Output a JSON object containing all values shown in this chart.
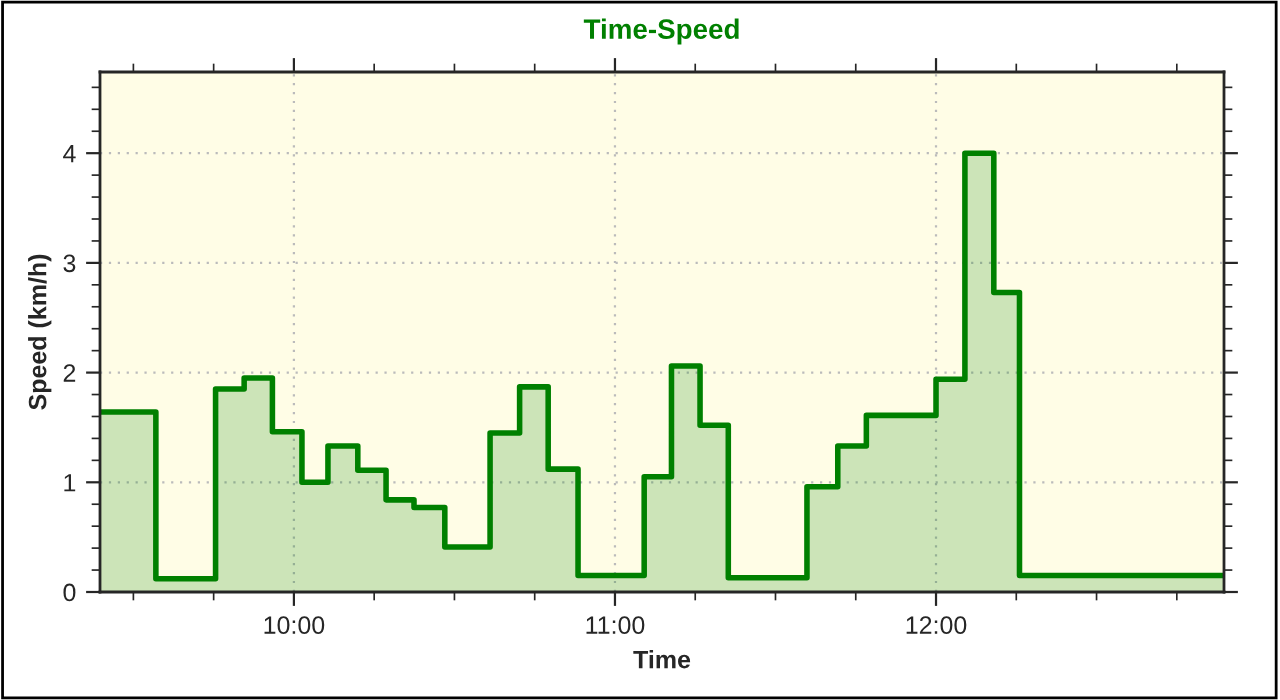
{
  "chart_data": {
    "type": "area",
    "title": "Time-Speed",
    "xlabel": "Time",
    "ylabel": "Speed (km/h)",
    "x": [
      9.396,
      9.57,
      9.57,
      9.756,
      9.756,
      9.845,
      9.845,
      9.933,
      9.933,
      10.025,
      10.025,
      10.106,
      10.106,
      10.199,
      10.199,
      10.287,
      10.287,
      10.374,
      10.374,
      10.47,
      10.47,
      10.611,
      10.611,
      10.703,
      10.703,
      10.792,
      10.792,
      10.885,
      10.885,
      11.091,
      11.091,
      11.176,
      11.176,
      11.265,
      11.265,
      11.353,
      11.353,
      11.598,
      11.598,
      11.694,
      11.694,
      11.783,
      11.783,
      12.0,
      12.0,
      12.09,
      12.09,
      12.18,
      12.18,
      12.26,
      12.26,
      12.897
    ],
    "series": [
      {
        "color": "#008000",
        "values": [
          1.64,
          1.64,
          0.12,
          0.12,
          1.85,
          1.85,
          1.95,
          1.95,
          1.46,
          1.46,
          1.0,
          1.0,
          1.33,
          1.33,
          1.11,
          1.11,
          0.84,
          0.84,
          0.77,
          0.77,
          0.41,
          0.41,
          1.45,
          1.45,
          1.87,
          1.87,
          1.12,
          1.12,
          0.15,
          0.15,
          1.05,
          1.05,
          2.06,
          2.06,
          1.52,
          1.52,
          0.13,
          0.13,
          0.96,
          0.96,
          1.33,
          1.33,
          1.61,
          1.61,
          1.94,
          1.94,
          4.0,
          4.0,
          2.73,
          2.73,
          0.15,
          0.15
        ]
      }
    ],
    "xlim": [
      9.396,
      12.897
    ],
    "xticks": [
      {
        "value": 10,
        "label": "10:00"
      },
      {
        "value": 11,
        "label": "11:00"
      },
      {
        "value": 12,
        "label": "12:00"
      }
    ],
    "ylim": [
      0,
      4.74
    ],
    "yticks": [
      0,
      1,
      2,
      3,
      4
    ],
    "grid": true,
    "legend": false
  }
}
